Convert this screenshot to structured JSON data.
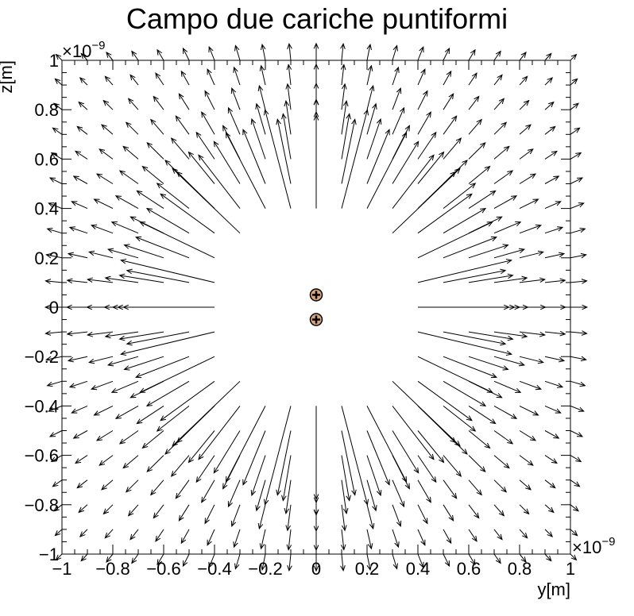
{
  "chart_data": {
    "type": "vector-field",
    "title": "Campo due cariche puntiformi",
    "xlabel": "y[m]",
    "ylabel": "z[m]",
    "x_exponent": {
      "base": "×10",
      "power": "−9"
    },
    "y_exponent": {
      "base": "×10",
      "power": "−9"
    },
    "xlim": [
      -1,
      1
    ],
    "ylim": [
      -1,
      1
    ],
    "x_ticks": [
      {
        "v": -1,
        "label": "−1"
      },
      {
        "v": -0.8,
        "label": "−0.8"
      },
      {
        "v": -0.6,
        "label": "−0.6"
      },
      {
        "v": -0.4,
        "label": "−0.4"
      },
      {
        "v": -0.2,
        "label": "−0.2"
      },
      {
        "v": 0,
        "label": "0"
      },
      {
        "v": 0.2,
        "label": "0.2"
      },
      {
        "v": 0.4,
        "label": "0.4"
      },
      {
        "v": 0.6,
        "label": "0.6"
      },
      {
        "v": 0.8,
        "label": "0.8"
      },
      {
        "v": 1,
        "label": "1"
      }
    ],
    "y_ticks": [
      {
        "v": -1,
        "label": "−1"
      },
      {
        "v": -0.8,
        "label": "−0.8"
      },
      {
        "v": -0.6,
        "label": "−0.6"
      },
      {
        "v": -0.4,
        "label": "−0.4"
      },
      {
        "v": -0.2,
        "label": "−0.2"
      },
      {
        "v": 0,
        "label": "0"
      },
      {
        "v": 0.2,
        "label": "0.2"
      },
      {
        "v": 0.4,
        "label": "0.4"
      },
      {
        "v": 0.6,
        "label": "0.6"
      },
      {
        "v": 0.8,
        "label": "0.8"
      },
      {
        "v": 1,
        "label": "1"
      }
    ],
    "charges": [
      {
        "y": 0,
        "z": 0.05,
        "sign": "+"
      },
      {
        "y": 0,
        "z": -0.05,
        "sign": "+"
      }
    ],
    "field_grid": {
      "min": -1,
      "max": 1,
      "step": 0.1,
      "exclusion_radius": 0.4
    },
    "charge_color": "#d9a67a",
    "arrow_color": "#000000"
  }
}
